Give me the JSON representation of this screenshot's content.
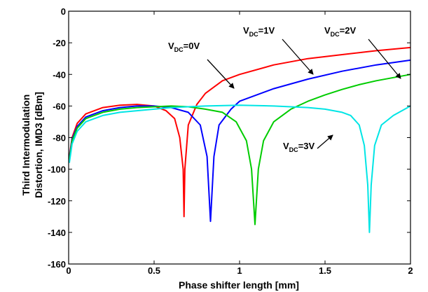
{
  "chart_data": {
    "type": "line",
    "xlabel": "Phase shifter length [mm]",
    "ylabel_lines": [
      "Third Intermodulation",
      "Distortion, IMD3 [dBm]"
    ],
    "xlim": [
      0,
      2
    ],
    "ylim": [
      -160,
      0
    ],
    "xticks": [
      0,
      0.5,
      1,
      1.5,
      2
    ],
    "xtick_labels": [
      "0",
      "0.5",
      "1",
      "1.5",
      "2"
    ],
    "yticks": [
      0,
      -20,
      -40,
      -60,
      -80,
      -100,
      -120,
      -140,
      -160
    ],
    "ytick_labels": [
      "0",
      "-20",
      "-40",
      "-60",
      "-80",
      "-100",
      "-120",
      "-140",
      "-160"
    ],
    "grid": false,
    "series": [
      {
        "color": "#ff0000",
        "annotation": {
          "main": "V",
          "sub": "DC",
          "rest": "=0V"
        },
        "points": [
          [
            0.004,
            -92
          ],
          [
            0.02,
            -80
          ],
          [
            0.05,
            -71
          ],
          [
            0.1,
            -65
          ],
          [
            0.2,
            -61
          ],
          [
            0.3,
            -59.5
          ],
          [
            0.4,
            -59
          ],
          [
            0.5,
            -60
          ],
          [
            0.57,
            -63
          ],
          [
            0.62,
            -68
          ],
          [
            0.65,
            -80
          ],
          [
            0.67,
            -100
          ],
          [
            0.675,
            -130
          ],
          [
            0.68,
            -100
          ],
          [
            0.7,
            -72
          ],
          [
            0.75,
            -59
          ],
          [
            0.8,
            -52
          ],
          [
            0.9,
            -44
          ],
          [
            1.0,
            -40
          ],
          [
            1.2,
            -34
          ],
          [
            1.4,
            -30
          ],
          [
            1.6,
            -27.5
          ],
          [
            1.8,
            -25
          ],
          [
            2.0,
            -23
          ]
        ]
      },
      {
        "color": "#0000ff",
        "annotation": {
          "main": "V",
          "sub": "DC",
          "rest": "=1V"
        },
        "points": [
          [
            0.004,
            -93
          ],
          [
            0.02,
            -81
          ],
          [
            0.05,
            -73
          ],
          [
            0.1,
            -67
          ],
          [
            0.2,
            -63
          ],
          [
            0.3,
            -61
          ],
          [
            0.4,
            -60
          ],
          [
            0.5,
            -60
          ],
          [
            0.6,
            -61
          ],
          [
            0.7,
            -64
          ],
          [
            0.77,
            -72
          ],
          [
            0.81,
            -92
          ],
          [
            0.83,
            -133
          ],
          [
            0.85,
            -92
          ],
          [
            0.88,
            -72
          ],
          [
            0.95,
            -62
          ],
          [
            1.0,
            -57
          ],
          [
            1.2,
            -49
          ],
          [
            1.4,
            -43
          ],
          [
            1.6,
            -38
          ],
          [
            1.8,
            -34
          ],
          [
            2.0,
            -31
          ]
        ]
      },
      {
        "color": "#00cc00",
        "annotation": {
          "main": "V",
          "sub": "DC",
          "rest": "=2V"
        },
        "points": [
          [
            0.004,
            -94
          ],
          [
            0.02,
            -82
          ],
          [
            0.05,
            -74
          ],
          [
            0.1,
            -68
          ],
          [
            0.2,
            -64
          ],
          [
            0.3,
            -62
          ],
          [
            0.4,
            -61
          ],
          [
            0.5,
            -60.5
          ],
          [
            0.6,
            -60
          ],
          [
            0.7,
            -60.5
          ],
          [
            0.8,
            -62
          ],
          [
            0.9,
            -64
          ],
          [
            0.98,
            -70
          ],
          [
            1.04,
            -82
          ],
          [
            1.07,
            -100
          ],
          [
            1.09,
            -135
          ],
          [
            1.11,
            -100
          ],
          [
            1.14,
            -82
          ],
          [
            1.2,
            -70
          ],
          [
            1.3,
            -62
          ],
          [
            1.4,
            -57
          ],
          [
            1.5,
            -53
          ],
          [
            1.6,
            -49.5
          ],
          [
            1.7,
            -46.5
          ],
          [
            1.8,
            -44
          ],
          [
            1.9,
            -42
          ],
          [
            2.0,
            -40
          ]
        ]
      },
      {
        "color": "#00e5e5",
        "annotation": {
          "main": "V",
          "sub": "DC",
          "rest": "=3V"
        },
        "points": [
          [
            0.004,
            -96
          ],
          [
            0.02,
            -84
          ],
          [
            0.05,
            -76
          ],
          [
            0.1,
            -70
          ],
          [
            0.2,
            -66
          ],
          [
            0.3,
            -64
          ],
          [
            0.4,
            -63
          ],
          [
            0.5,
            -62
          ],
          [
            0.6,
            -61
          ],
          [
            0.8,
            -60
          ],
          [
            1.0,
            -59.5
          ],
          [
            1.2,
            -60
          ],
          [
            1.4,
            -61
          ],
          [
            1.5,
            -62
          ],
          [
            1.6,
            -64
          ],
          [
            1.65,
            -66
          ],
          [
            1.7,
            -72
          ],
          [
            1.73,
            -85
          ],
          [
            1.75,
            -110
          ],
          [
            1.76,
            -140
          ],
          [
            1.77,
            -110
          ],
          [
            1.79,
            -85
          ],
          [
            1.83,
            -72
          ],
          [
            1.9,
            -66
          ],
          [
            1.95,
            -63
          ],
          [
            2.0,
            -60
          ]
        ]
      }
    ]
  }
}
